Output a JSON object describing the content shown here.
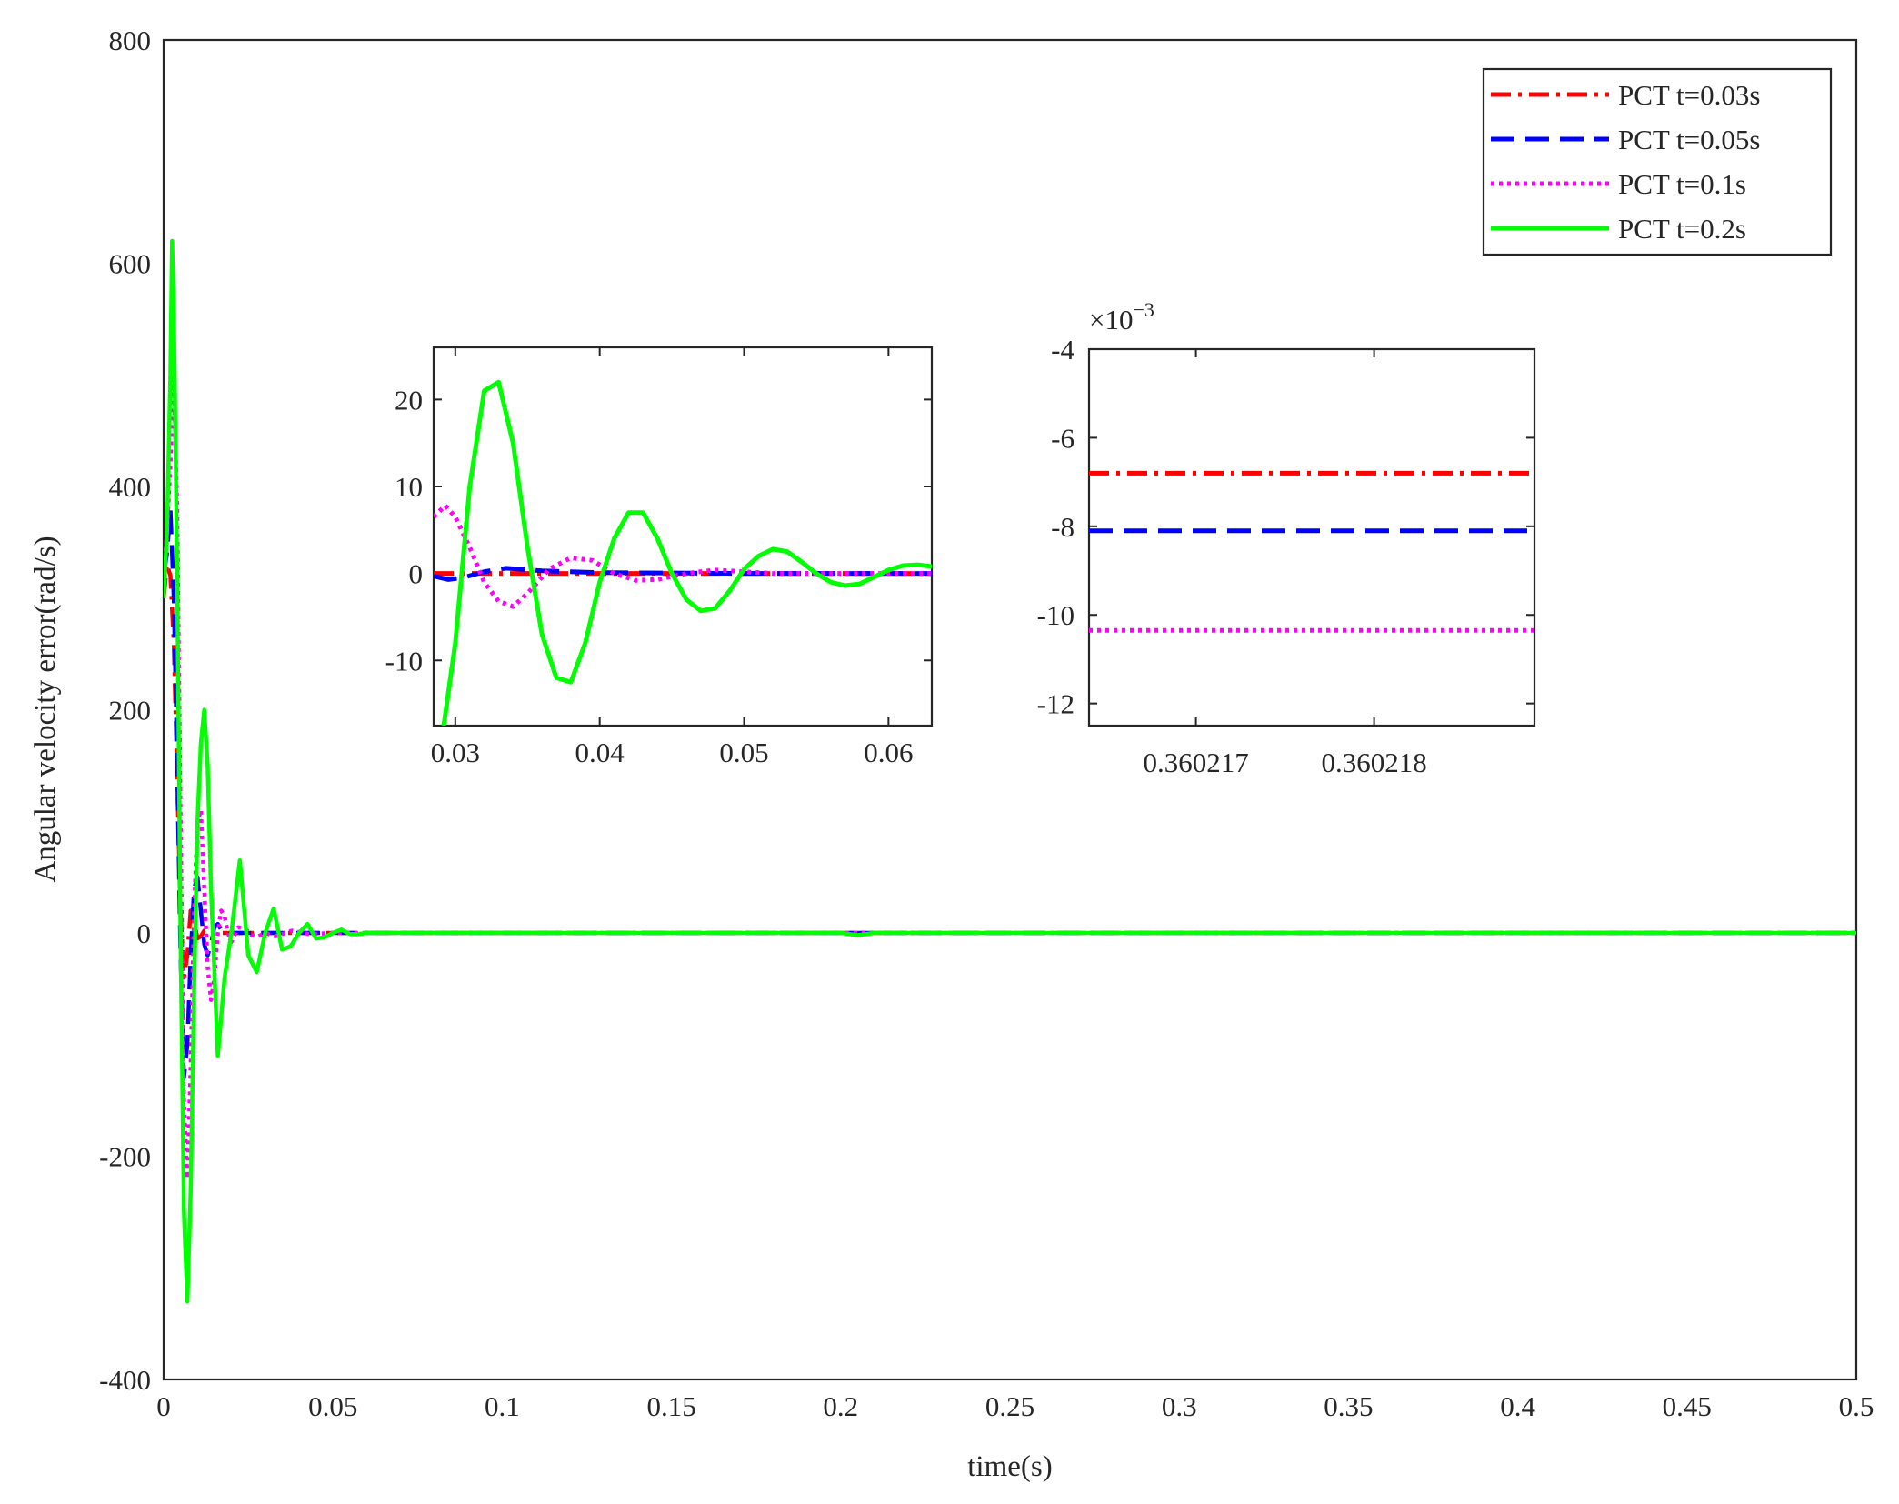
{
  "chart_data": {
    "main": {
      "type": "line",
      "xlabel": "time(s)",
      "ylabel": "Angular velocity error(rad/s)",
      "xlim": [
        0,
        0.5
      ],
      "ylim": [
        -400,
        800
      ],
      "xticks": [
        0,
        0.05,
        0.1,
        0.15,
        0.2,
        0.25,
        0.3,
        0.35,
        0.4,
        0.45,
        0.5
      ],
      "xtick_labels": [
        "0",
        "0.05",
        "0.1",
        "0.15",
        "0.2",
        "0.25",
        "0.3",
        "0.35",
        "0.4",
        "0.45",
        "0.5"
      ],
      "yticks": [
        -400,
        -200,
        0,
        200,
        400,
        600,
        800
      ],
      "ytick_labels": [
        "-400",
        "-200",
        "0",
        "200",
        "400",
        "600",
        "800"
      ],
      "legend_position": "top-right",
      "series": [
        {
          "name": "PCT t=0.03s",
          "color": "#ff0000",
          "style": "dashdot",
          "x": [
            0,
            0.001,
            0.002,
            0.003,
            0.004,
            0.005,
            0.006,
            0.007,
            0.008,
            0.009,
            0.01,
            0.011,
            0.012,
            0.013,
            0.014,
            0.015,
            0.017,
            0.02,
            0.025,
            0.03,
            0.04,
            0.06,
            0.1,
            0.5
          ],
          "y": [
            300,
            330,
            320,
            260,
            140,
            20,
            -40,
            -20,
            20,
            10,
            -5,
            -3,
            2,
            1,
            0,
            0,
            0,
            0,
            0,
            0,
            0,
            0,
            0,
            0
          ]
        },
        {
          "name": "PCT t=0.05s",
          "color": "#0000ff",
          "style": "dashed",
          "x": [
            0,
            0.001,
            0.002,
            0.003,
            0.004,
            0.005,
            0.006,
            0.007,
            0.008,
            0.009,
            0.01,
            0.011,
            0.012,
            0.013,
            0.014,
            0.015,
            0.016,
            0.017,
            0.018,
            0.019,
            0.02,
            0.022,
            0.025,
            0.03,
            0.04,
            0.06,
            0.1,
            0.5
          ],
          "y": [
            320,
            340,
            380,
            300,
            150,
            -20,
            -130,
            -100,
            -20,
            40,
            50,
            20,
            -10,
            -20,
            -10,
            5,
            8,
            3,
            -2,
            -2,
            0,
            0,
            0,
            0,
            0,
            0,
            0,
            0
          ]
        },
        {
          "name": "PCT t=0.1s",
          "color": "#ff00ff",
          "style": "dotted",
          "x": [
            0,
            0.001,
            0.002,
            0.003,
            0.004,
            0.005,
            0.006,
            0.007,
            0.008,
            0.009,
            0.01,
            0.011,
            0.012,
            0.013,
            0.014,
            0.015,
            0.016,
            0.017,
            0.018,
            0.019,
            0.02,
            0.022,
            0.024,
            0.026,
            0.028,
            0.03,
            0.033,
            0.038,
            0.043,
            0.05,
            0.06,
            0.1,
            0.5
          ],
          "y": [
            320,
            360,
            420,
            500,
            380,
            100,
            -150,
            -220,
            -120,
            20,
            100,
            110,
            40,
            -30,
            -60,
            -40,
            0,
            20,
            15,
            0,
            -8,
            5,
            4,
            -2,
            -3,
            0,
            -3,
            2,
            -1,
            0,
            0,
            0,
            0
          ]
        },
        {
          "name": "PCT t=0.2s",
          "color": "#00ff00",
          "style": "solid",
          "x": [
            0,
            0.001,
            0.002,
            0.0025,
            0.003,
            0.004,
            0.005,
            0.006,
            0.007,
            0.008,
            0.009,
            0.01,
            0.011,
            0.012,
            0.013,
            0.014,
            0.016,
            0.018,
            0.02,
            0.0225,
            0.025,
            0.0275,
            0.03,
            0.0325,
            0.035,
            0.0375,
            0.04,
            0.0425,
            0.045,
            0.0475,
            0.05,
            0.0525,
            0.055,
            0.0575,
            0.06,
            0.065,
            0.07,
            0.08,
            0.1,
            0.2,
            0.205,
            0.21,
            0.3,
            0.5
          ],
          "y": [
            300,
            360,
            500,
            620,
            560,
            320,
            0,
            -250,
            -330,
            -230,
            -50,
            100,
            170,
            200,
            150,
            40,
            -110,
            -40,
            0,
            65,
            -20,
            -35,
            0,
            22,
            -15,
            -12,
            0,
            8,
            -5,
            -4,
            0,
            3,
            -1,
            -1,
            0,
            0,
            0,
            0,
            0,
            0,
            -2,
            0,
            0,
            0
          ]
        }
      ]
    },
    "inset1": {
      "type": "line",
      "xlim": [
        0.0285,
        0.063
      ],
      "ylim": [
        -17.5,
        26
      ],
      "xticks": [
        0.03,
        0.04,
        0.05,
        0.06
      ],
      "xtick_labels": [
        "0.03",
        "0.04",
        "0.05",
        "0.06"
      ],
      "yticks": [
        -10,
        0,
        10,
        20
      ],
      "ytick_labels": [
        "-10",
        "0",
        "10",
        "20"
      ],
      "series": [
        {
          "name": "PCT t=0.03s",
          "color": "#ff0000",
          "style": "dashdot",
          "x": [
            0.0285,
            0.063
          ],
          "y": [
            0,
            0
          ]
        },
        {
          "name": "PCT t=0.05s",
          "color": "#0000ff",
          "style": "dashed",
          "x": [
            0.0285,
            0.0295,
            0.0305,
            0.032,
            0.0335,
            0.036,
            0.04,
            0.05,
            0.063
          ],
          "y": [
            -0.3,
            -0.7,
            -0.5,
            0.2,
            0.6,
            0.3,
            0.1,
            0,
            0
          ]
        },
        {
          "name": "PCT t=0.1s",
          "color": "#ff00ff",
          "style": "dotted",
          "x": [
            0.0285,
            0.0293,
            0.03,
            0.031,
            0.032,
            0.033,
            0.034,
            0.035,
            0.0365,
            0.038,
            0.0395,
            0.041,
            0.0425,
            0.044,
            0.046,
            0.048,
            0.05,
            0.052,
            0.055,
            0.063
          ],
          "y": [
            6.5,
            7.8,
            6.5,
            3,
            -1,
            -3.2,
            -3.8,
            -2.3,
            0.5,
            1.8,
            1.5,
            0,
            -0.8,
            -0.7,
            0,
            0.4,
            0.2,
            0,
            0,
            0
          ]
        },
        {
          "name": "PCT t=0.2s",
          "color": "#00ff00",
          "style": "solid",
          "x": [
            0.0292,
            0.03,
            0.031,
            0.032,
            0.033,
            0.034,
            0.035,
            0.036,
            0.037,
            0.038,
            0.039,
            0.04,
            0.041,
            0.042,
            0.043,
            0.044,
            0.045,
            0.046,
            0.047,
            0.048,
            0.049,
            0.05,
            0.051,
            0.052,
            0.053,
            0.054,
            0.055,
            0.056,
            0.057,
            0.058,
            0.059,
            0.06,
            0.061,
            0.062,
            0.063
          ],
          "y": [
            -17.5,
            -8,
            10,
            21,
            22,
            15,
            3,
            -7,
            -12,
            -12.5,
            -8,
            -1,
            4,
            7,
            7,
            4,
            0,
            -3,
            -4.3,
            -4,
            -2,
            0.5,
            2,
            2.8,
            2.5,
            1.3,
            0,
            -1,
            -1.4,
            -1.2,
            -0.4,
            0.4,
            0.9,
            1,
            0.8
          ]
        }
      ]
    },
    "inset2": {
      "type": "line",
      "exponent_label": "×10",
      "exponent_power": "−3",
      "xlim": [
        0.3602164,
        0.3602189
      ],
      "ylim": [
        -12.5,
        -4
      ],
      "xticks": [
        0.360217,
        0.360218
      ],
      "xtick_labels": [
        "0.360217",
        "0.360218"
      ],
      "yticks": [
        -12,
        -10,
        -8,
        -6,
        -4
      ],
      "ytick_labels": [
        "-12",
        "-10",
        "-8",
        "-6",
        "-4"
      ],
      "series": [
        {
          "name": "PCT t=0.03s",
          "color": "#ff0000",
          "style": "dashdot",
          "x": [
            0.3602164,
            0.3602189
          ],
          "y": [
            -6.8,
            -6.8
          ]
        },
        {
          "name": "PCT t=0.05s",
          "color": "#0000ff",
          "style": "dashed",
          "x": [
            0.3602164,
            0.3602189
          ],
          "y": [
            -8.1,
            -8.1
          ]
        },
        {
          "name": "PCT t=0.1s",
          "color": "#ff00ff",
          "style": "dotted",
          "x": [
            0.3602164,
            0.3602189
          ],
          "y": [
            -10.35,
            -10.35
          ]
        }
      ]
    }
  }
}
